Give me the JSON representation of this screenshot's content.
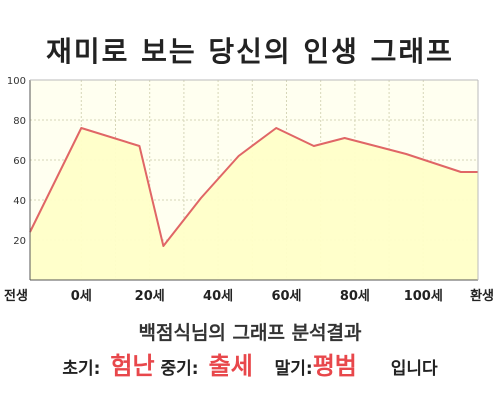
{
  "chart_data": {
    "type": "area",
    "title": "재미로 보는 당신의 인생 그래프",
    "x": [
      -15,
      0,
      17,
      24,
      35,
      46,
      57,
      68,
      77,
      95,
      111
    ],
    "y": [
      24,
      76,
      67,
      17,
      41,
      62,
      76,
      67,
      71,
      63,
      54
    ],
    "xticks": [
      {
        "label": "전생",
        "value": -15
      },
      {
        "label": "0세",
        "value": 0
      },
      {
        "label": "20세",
        "value": 20
      },
      {
        "label": "40세",
        "value": 40
      },
      {
        "label": "60세",
        "value": 60
      },
      {
        "label": "80세",
        "value": 80
      },
      {
        "label": "100세",
        "value": 100
      },
      {
        "label": "환생",
        "value": 116
      }
    ],
    "yticks": [
      20,
      40,
      60,
      80,
      100
    ],
    "ylim": [
      0,
      100
    ],
    "xlim": [
      -15,
      116
    ],
    "grid": true,
    "colors": {
      "line": "#e06666",
      "fill": "#ffffc8",
      "grid": "#d6d6b8",
      "axis": "#555555"
    }
  },
  "summary": {
    "heading": "백점식님의 그래프 분석결과",
    "early_label": "초기:",
    "early_value": "험난",
    "mid_label": "중기:",
    "mid_value": "출세",
    "late_label": "말기:",
    "late_value": "평범",
    "ending": "입니다"
  }
}
